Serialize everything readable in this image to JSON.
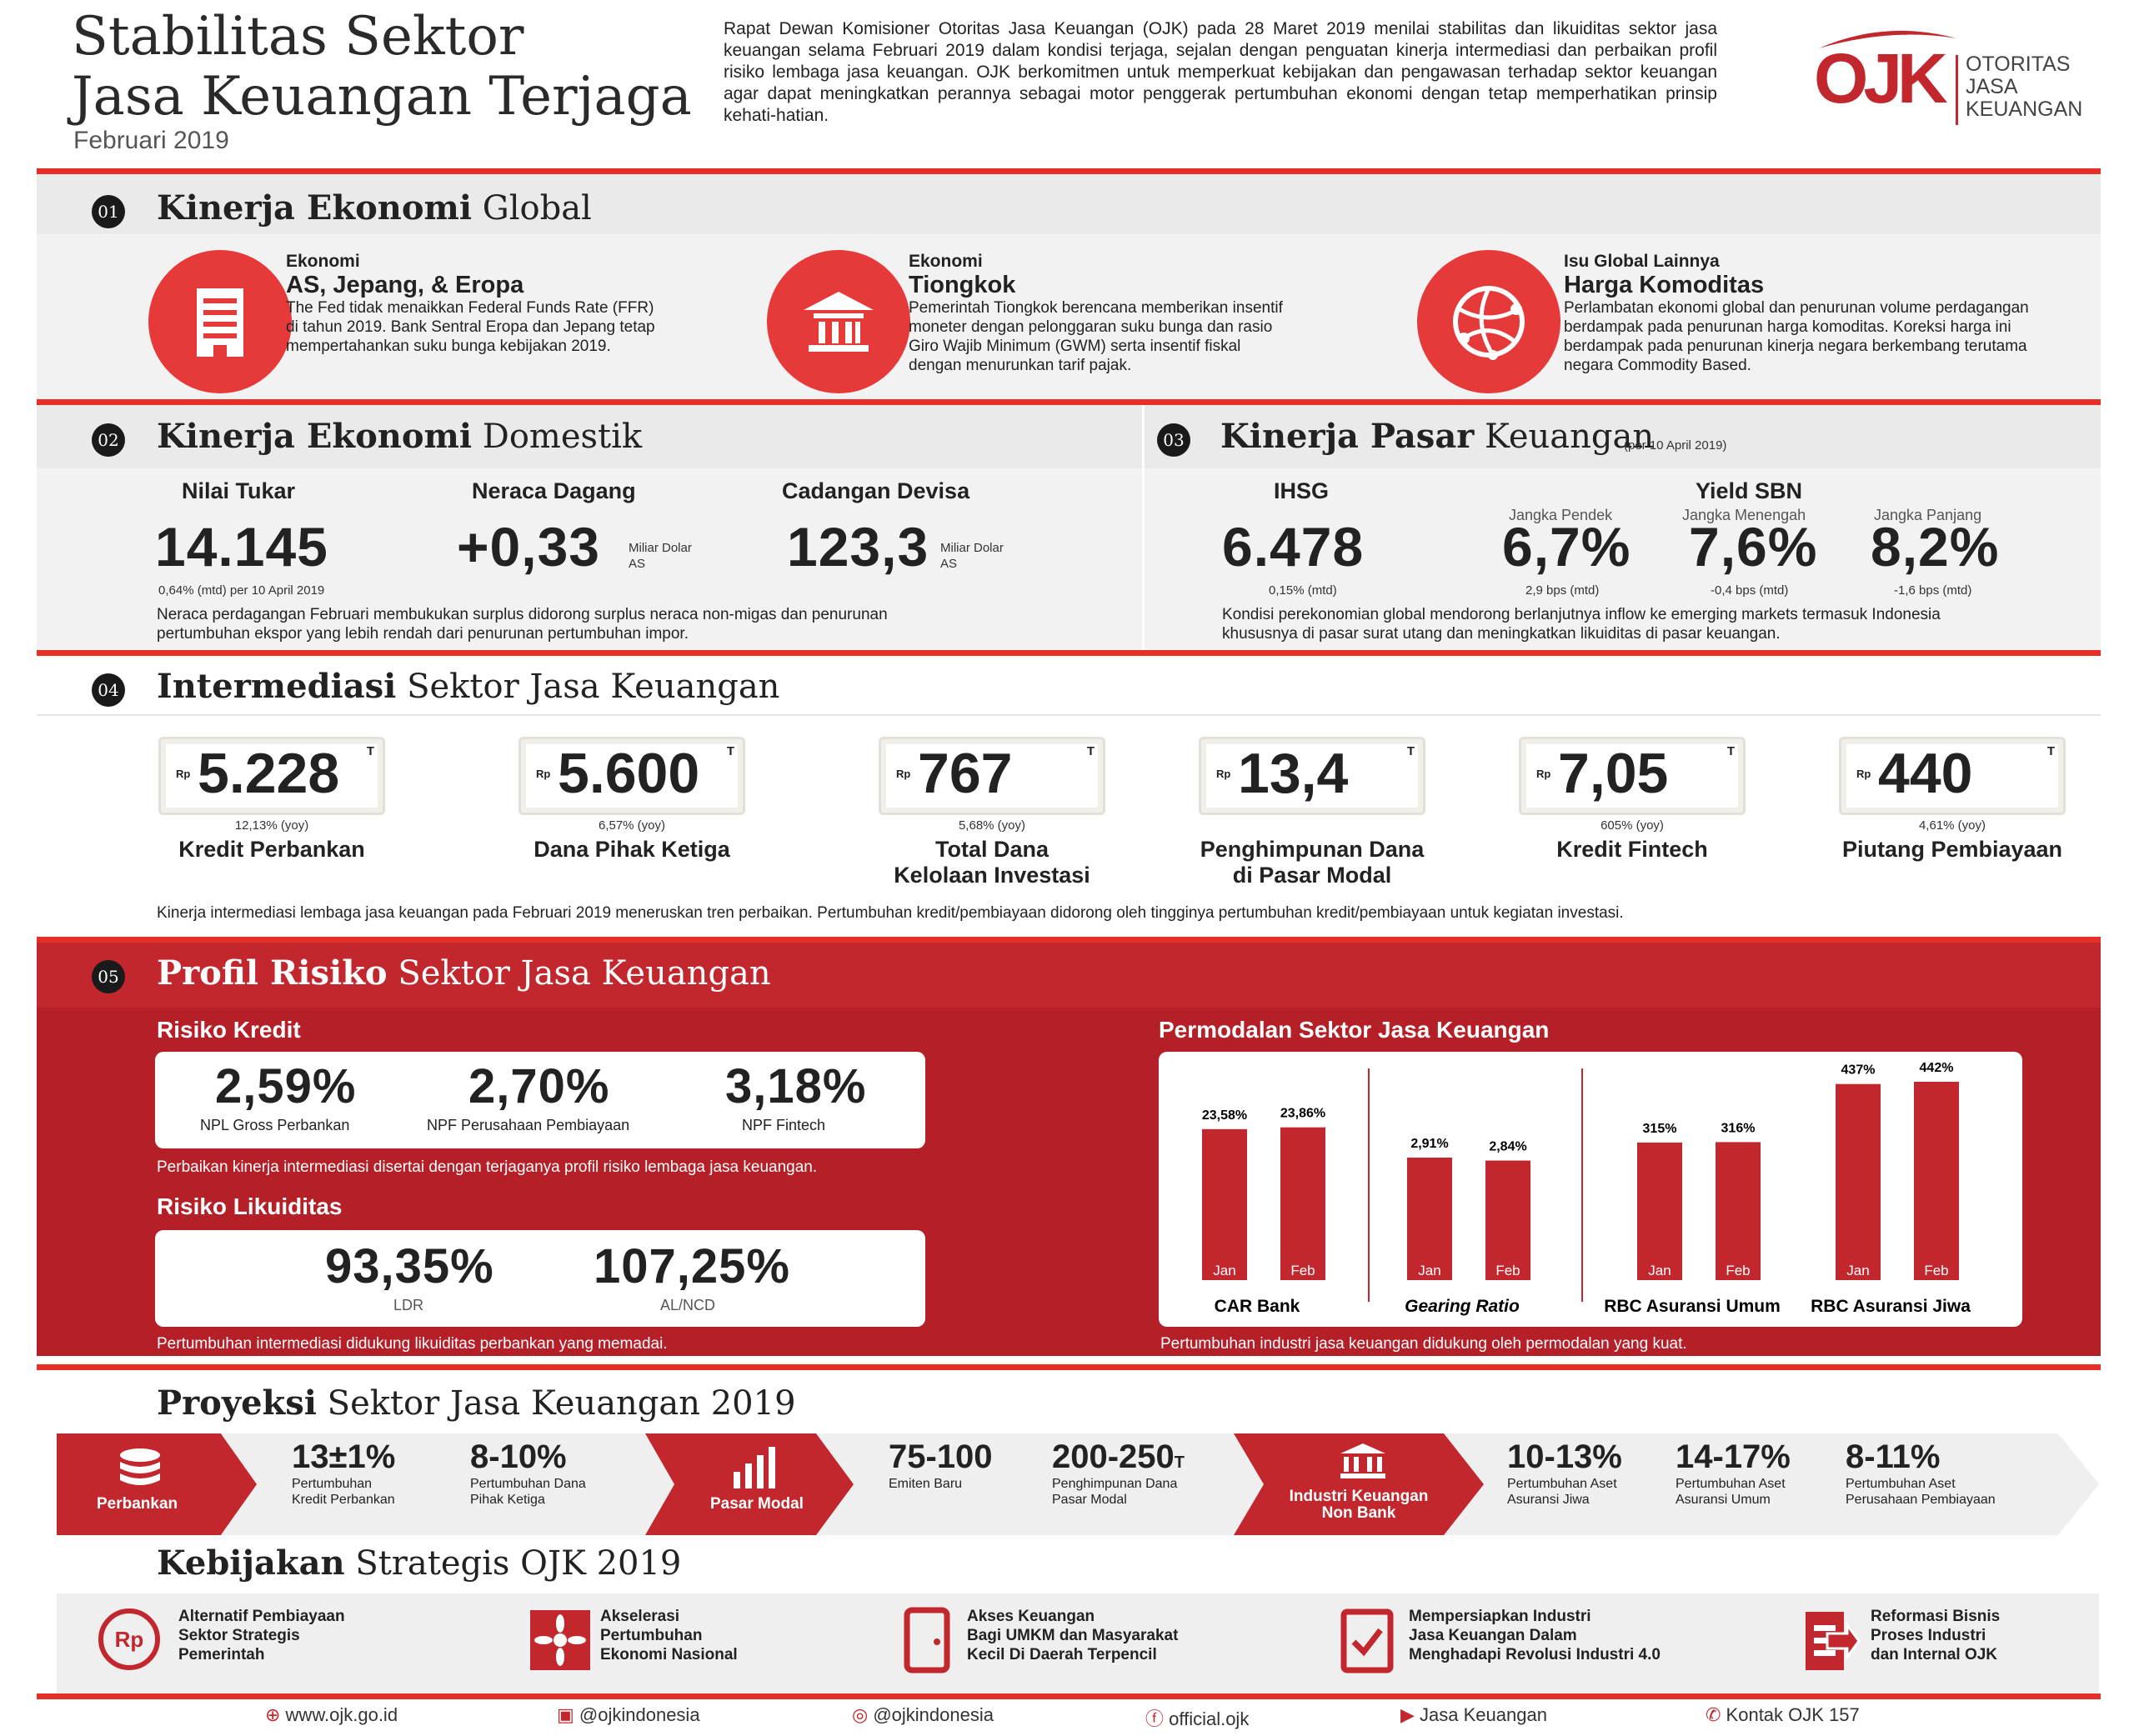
{
  "header": {
    "title_line1": "Stabilitas Sektor",
    "title_line2": "Jasa Keuangan Terjaga",
    "date": "Februari 2019",
    "intro": "Rapat Dewan Komisioner Otoritas Jasa Keuangan (OJK) pada 28 Maret 2019 menilai stabilitas dan likuiditas sektor jasa keuangan selama Februari 2019 dalam kondisi terjaga, sejalan dengan penguatan kinerja intermediasi dan perbaikan profil risiko lembaga jasa keuangan. OJK berkomitmen untuk memperkuat kebijakan dan pengawasan terhadap sektor keuangan agar dapat meningkatkan perannya sebagai motor penggerak pertumbuhan ekonomi dengan tetap memperhatikan prinsip kehati-hatian.",
    "logo_mark": "OJK",
    "logo_l1": "OTORITAS",
    "logo_l2": "JASA",
    "logo_l3": "KEUANGAN"
  },
  "s1": {
    "num": "01",
    "title_bold": "Kinerja Ekonomi",
    "title_rest": "Global",
    "items": [
      {
        "kicker": "Ekonomi",
        "head": "AS, Jepang, & Eropa",
        "text": "The Fed tidak menaikkan Federal Funds Rate (FFR) di tahun 2019. Bank Sentral Eropa dan Jepang tetap mempertahankan suku bunga kebijakan 2019."
      },
      {
        "kicker": "Ekonomi",
        "head": "Tiongkok",
        "text": "Pemerintah Tiongkok berencana memberikan insentif moneter dengan pelonggaran suku bunga dan rasio Giro Wajib Minimum (GWM) serta insentif fiskal dengan menurunkan tarif pajak."
      },
      {
        "kicker": "Isu Global Lainnya",
        "head": "Harga Komoditas",
        "text": "Perlambatan ekonomi global dan penurunan volume perdagangan berdampak pada penurunan harga komoditas. Koreksi harga ini berdampak pada penurunan kinerja negara berkembang terutama negara Commodity Based."
      }
    ]
  },
  "s2": {
    "num": "02",
    "title_bold": "Kinerja Ekonomi",
    "title_rest": "Domestik",
    "items": [
      {
        "label": "Nilai Tukar",
        "value": "14.145",
        "unit": "",
        "sub": "0,64% (mtd) per 10 April 2019"
      },
      {
        "label": "Neraca Dagang",
        "value": "+0,33",
        "unit": "Miliar Dolar AS",
        "sub": ""
      },
      {
        "label": "Cadangan Devisa",
        "value": "123,3",
        "unit": "Miliar Dolar AS",
        "sub": ""
      }
    ],
    "note": "Neraca perdagangan Februari membukukan surplus didorong surplus neraca non-migas dan penurunan pertumbuhan ekspor yang lebih rendah dari penurunan pertumbuhan impor."
  },
  "s3": {
    "num": "03",
    "title_bold": "Kinerja Pasar",
    "title_rest": "Keuangan",
    "date": "(per 10 April 2019)",
    "ihsg_label": "IHSG",
    "ihsg_value": "6.478",
    "ihsg_sub": "0,15% (mtd)",
    "yield_label": "Yield SBN",
    "yields": [
      {
        "term": "Jangka Pendek",
        "value": "6,7%",
        "sub": "2,9 bps (mtd)"
      },
      {
        "term": "Jangka Menengah",
        "value": "7,6%",
        "sub": "-0,4 bps (mtd)"
      },
      {
        "term": "Jangka Panjang",
        "value": "8,2%",
        "sub": "-1,6 bps (mtd)"
      }
    ],
    "note": "Kondisi perekonomian global mendorong berlanjutnya inflow ke emerging markets termasuk Indonesia khususnya di pasar surat utang dan meningkatkan likuiditas di pasar keuangan."
  },
  "s4": {
    "num": "04",
    "title_bold": "Intermediasi",
    "title_rest": "Sektor Jasa Keuangan",
    "items": [
      {
        "value": "5.228",
        "growth": "12,13% (yoy)",
        "label1": "Kredit Perbankan",
        "label2": ""
      },
      {
        "value": "5.600",
        "growth": "6,57% (yoy)",
        "label1": "Dana Pihak Ketiga",
        "label2": ""
      },
      {
        "value": "767",
        "growth": "5,68% (yoy)",
        "label1": "Total Dana",
        "label2": "Kelolaan Investasi"
      },
      {
        "value": "13,4",
        "growth": "",
        "label1": "Penghimpunan Dana",
        "label2": "di Pasar Modal"
      },
      {
        "value": "7,05",
        "growth": "605% (yoy)",
        "label1": "Kredit Fintech",
        "label2": ""
      },
      {
        "value": "440",
        "growth": "4,61% (yoy)",
        "label1": "Piutang Pembiayaan",
        "label2": ""
      }
    ],
    "rp": "Rp",
    "t": "T",
    "note": "Kinerja intermediasi lembaga jasa keuangan pada Februari 2019 meneruskan tren perbaikan. Pertumbuhan kredit/pembiayaan didorong oleh tingginya pertumbuhan kredit/pembiayaan untuk kegiatan investasi."
  },
  "s5": {
    "num": "05",
    "title_bold": "Profil Risiko",
    "title_rest": "Sektor Jasa Keuangan",
    "kredit_title": "Risiko Kredit",
    "kredit": [
      {
        "value": "2,59%",
        "label": "NPL Gross Perbankan"
      },
      {
        "value": "2,70%",
        "label": "NPF Perusahaan Pembiayaan"
      },
      {
        "value": "3,18%",
        "label": "NPF Fintech"
      }
    ],
    "kredit_note": "Perbaikan kinerja intermediasi disertai dengan terjaganya profil risiko lembaga jasa keuangan.",
    "likuid_title": "Risiko Likuiditas",
    "likuid": [
      {
        "value": "93,35%",
        "label": "LDR"
      },
      {
        "value": "107,25%",
        "label": "AL/NCD"
      }
    ],
    "likuid_note": "Pertumbuhan intermediasi didukung likuiditas perbankan yang memadai.",
    "modal_title": "Permodalan Sektor Jasa Keuangan",
    "modal_note": "Pertumbuhan industri jasa keuangan didukung oleh permodalan yang kuat."
  },
  "chart_data": {
    "type": "bar",
    "title": "Permodalan Sektor Jasa Keuangan",
    "categories": [
      "Jan",
      "Feb"
    ],
    "series": [
      {
        "name": "CAR Bank",
        "labels": [
          "23,58%",
          "23,86%"
        ],
        "values": [
          23.58,
          23.86
        ]
      },
      {
        "name": "Gearing Ratio",
        "labels": [
          "2,91%",
          "2,84%"
        ],
        "values": [
          2.91,
          2.84
        ]
      },
      {
        "name": "RBC Asuransi Umum",
        "labels": [
          "315%",
          "316%"
        ],
        "values": [
          315,
          316
        ]
      },
      {
        "name": "RBC Asuransi Jiwa",
        "labels": [
          "437%",
          "442%"
        ],
        "values": [
          437,
          442
        ]
      }
    ]
  },
  "proj": {
    "title_bold": "Proyeksi",
    "title_rest": "Sektor Jasa Keuangan 2019",
    "perbankan": "Perbankan",
    "pasar": "Pasar Modal",
    "iknb1": "Industri Keuangan",
    "iknb2": "Non Bank",
    "items": [
      {
        "value": "13±1%",
        "l1": "Pertumbuhan",
        "l2": "Kredit Perbankan"
      },
      {
        "value": "8-10%",
        "l1": "Pertumbuhan Dana",
        "l2": "Pihak Ketiga"
      },
      {
        "value": "75-100",
        "l1": "Emiten Baru",
        "l2": ""
      },
      {
        "value": "200-250",
        "sup": "T",
        "l1": "Penghimpunan Dana",
        "l2": "Pasar Modal"
      },
      {
        "value": "10-13%",
        "l1": "Pertumbuhan Aset",
        "l2": "Asuransi Jiwa"
      },
      {
        "value": "14-17%",
        "l1": "Pertumbuhan Aset",
        "l2": "Asuransi Umum"
      },
      {
        "value": "8-11%",
        "l1": "Pertumbuhan Aset",
        "l2": "Perusahaan Pembiayaan"
      }
    ]
  },
  "policy": {
    "title_bold": "Kebijakan",
    "title_rest": "Strategis OJK 2019",
    "items": [
      {
        "l1": "Alternatif Pembiayaan",
        "l2": "Sektor Strategis",
        "l3": "Pemerintah"
      },
      {
        "l1": "Akselerasi",
        "l2": "Pertumbuhan",
        "l3": "Ekonomi Nasional"
      },
      {
        "l1": "Akses Keuangan",
        "l2": "Bagi UMKM dan Masyarakat",
        "l3": "Kecil Di Daerah Terpencil"
      },
      {
        "l1": "Mempersiapkan Industri",
        "l2": "Jasa Keuangan Dalam",
        "l3": "Menghadapi Revolusi Industri 4.0"
      },
      {
        "l1": "Reformasi Bisnis",
        "l2": "Proses Industri",
        "l3": "dan Internal OJK"
      }
    ],
    "rp_icon": "Rp"
  },
  "footer": {
    "web": "www.ojk.go.id",
    "twitter": "@ojkindonesia",
    "instagram": "@ojkindonesia",
    "facebook": "official.ojk",
    "youtube": "Jasa Keuangan",
    "phone": "Kontak OJK 157"
  }
}
